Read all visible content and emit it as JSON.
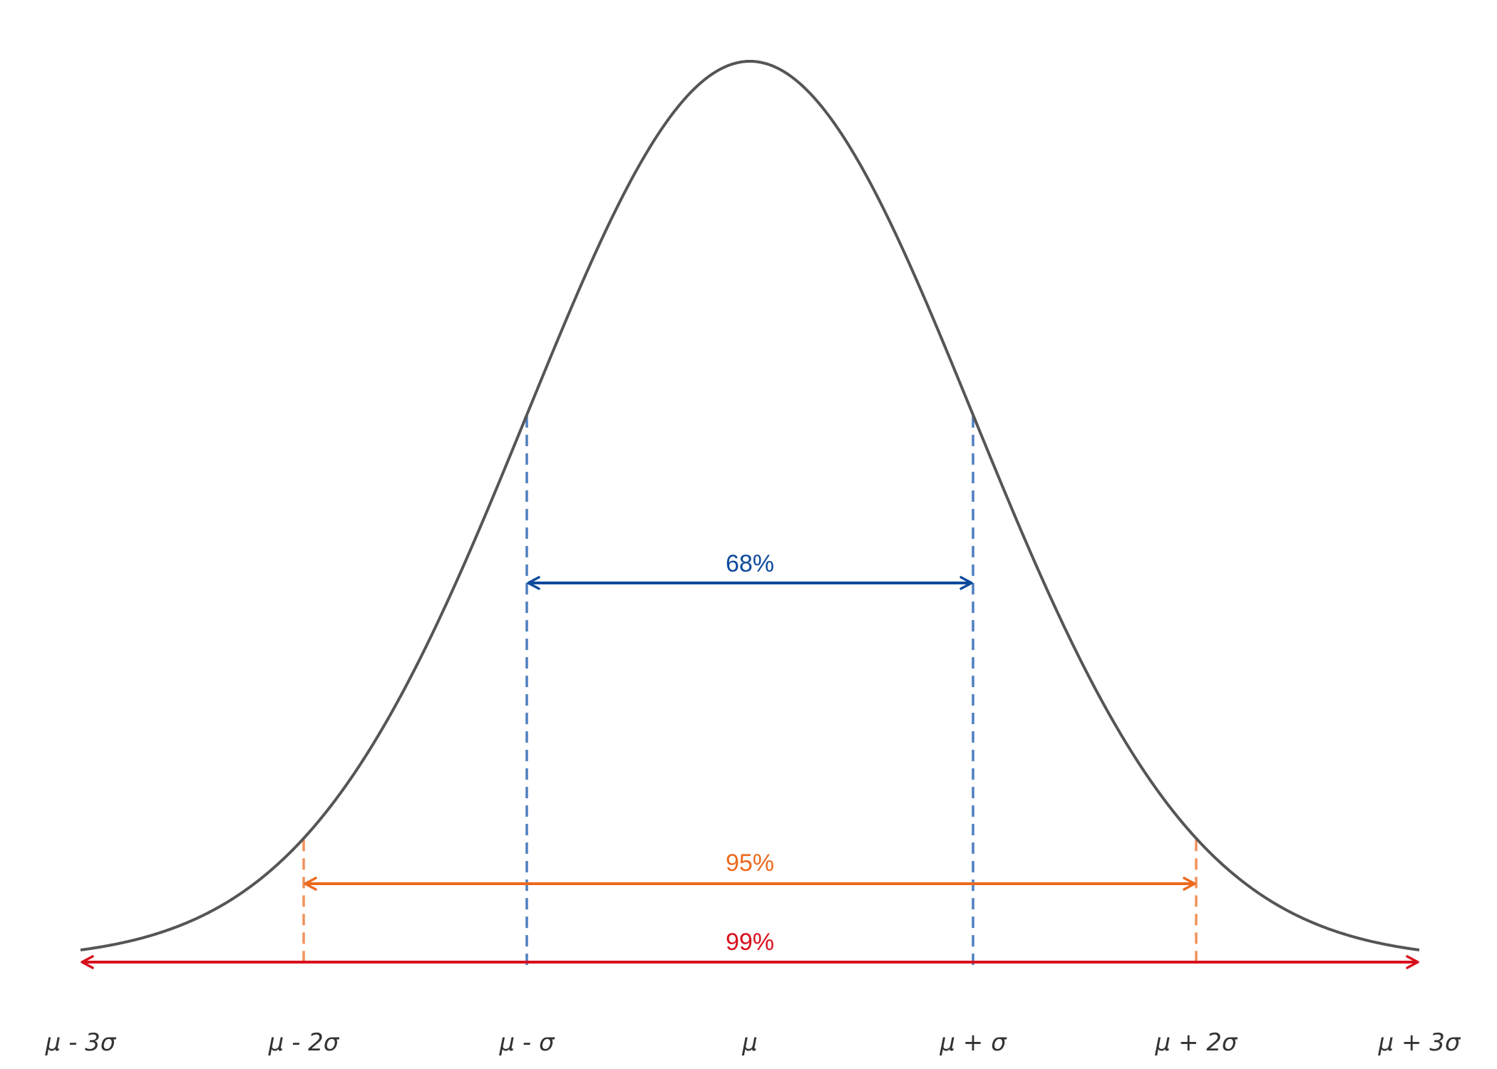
{
  "chart_data": {
    "type": "line",
    "curve": "normal-distribution",
    "x_ticks": [
      {
        "value": -3,
        "label": "μ - 3σ"
      },
      {
        "value": -2,
        "label": "μ - 2σ"
      },
      {
        "value": -1,
        "label": "μ - σ"
      },
      {
        "value": 0,
        "label": "μ"
      },
      {
        "value": 1,
        "label": "μ + σ"
      },
      {
        "value": 2,
        "label": "μ + 2σ"
      },
      {
        "value": 3,
        "label": "μ + 3σ"
      }
    ],
    "xlim": [
      -3,
      3
    ],
    "grid": false,
    "intervals": [
      {
        "from": -1,
        "to": 1,
        "label": "68%",
        "color": "#0d4a9c",
        "guide_color": "#4f7fbf"
      },
      {
        "from": -2,
        "to": 2,
        "label": "95%",
        "color": "#ec6a1e",
        "guide_color": "#f0925a"
      },
      {
        "from": -3,
        "to": 3,
        "label": "99%",
        "color": "#d8101d",
        "guide_color": "#d8101d"
      }
    ],
    "curve_color": "#555555"
  }
}
